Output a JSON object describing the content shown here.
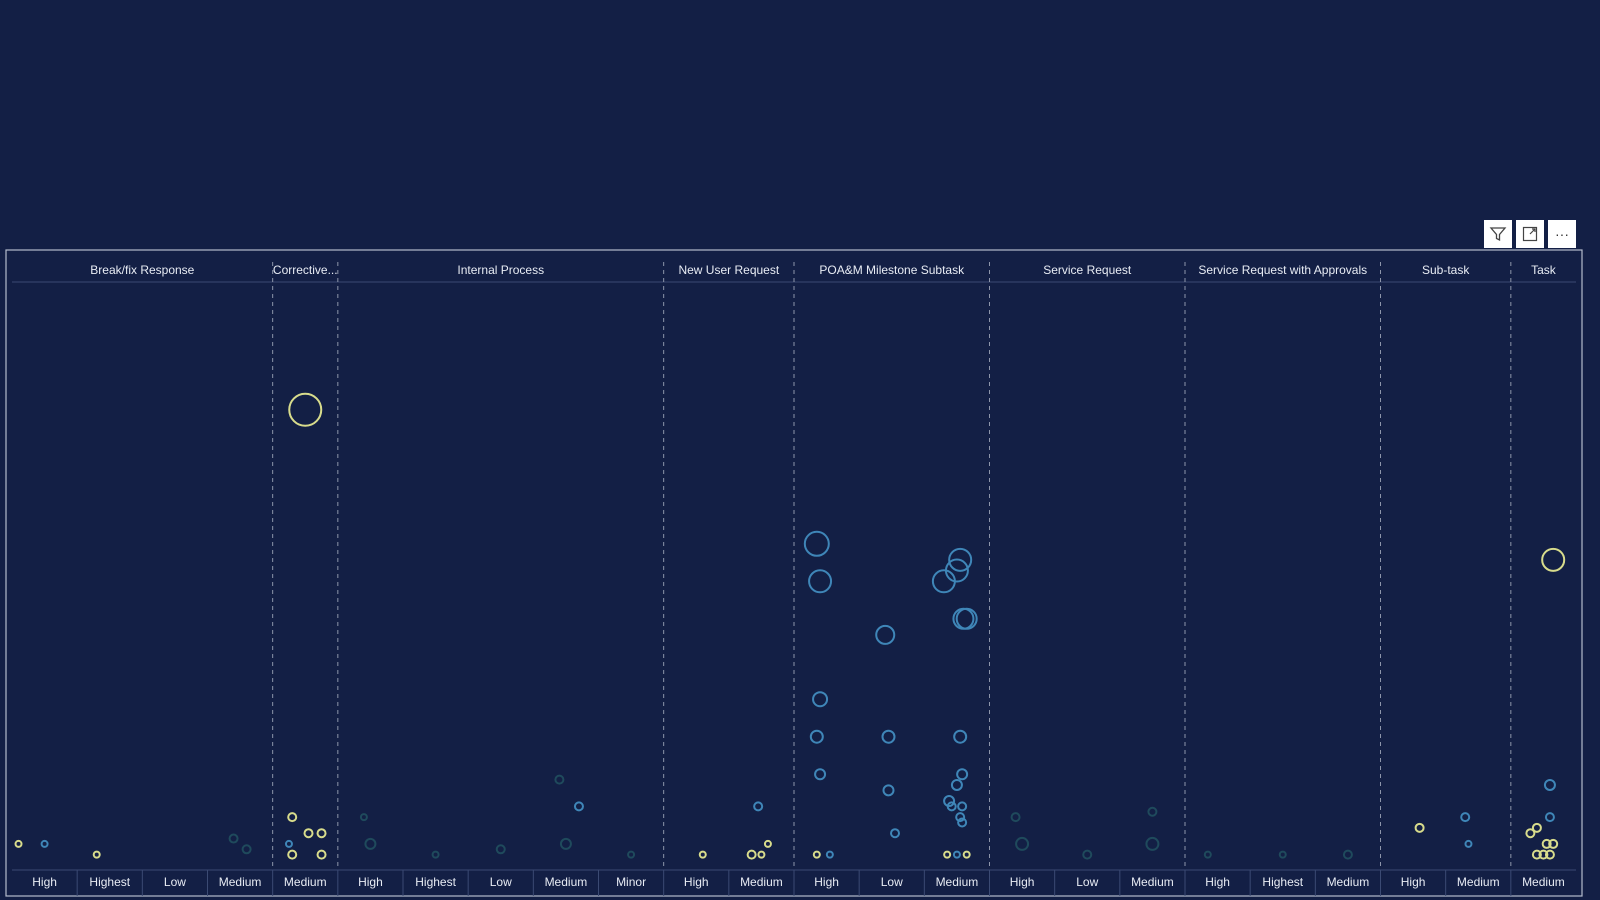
{
  "colors": {
    "background": "#131f45",
    "frame": "#b4bccd",
    "divider": "#8d95aa",
    "yellow_series": "#d8dc8c",
    "blue_series": "#3f86b8",
    "dark_teal_series": "#1f4a5c"
  },
  "toolbar": {
    "filter_icon": "filter-icon",
    "focus_icon": "focus-mode-icon",
    "more_icon": "more-options-icon",
    "more_label": "···"
  },
  "chart_data": {
    "type": "scatter",
    "groups": [
      {
        "name": "Break/fix Response",
        "categories": [
          "High",
          "Highest",
          "Low",
          "Medium"
        ]
      },
      {
        "name": "Corrective...",
        "categories": [
          "Medium"
        ]
      },
      {
        "name": "Internal Process",
        "categories": [
          "High",
          "Highest",
          "Low",
          "Medium",
          "Minor"
        ]
      },
      {
        "name": "New User Request",
        "categories": [
          "High",
          "Medium"
        ]
      },
      {
        "name": "POA&M Milestone Subtask",
        "categories": [
          "High",
          "Low",
          "Medium"
        ]
      },
      {
        "name": "Service Request",
        "categories": [
          "High",
          "Low",
          "Medium"
        ]
      },
      {
        "name": "Service Request with Approvals",
        "categories": [
          "High",
          "Highest",
          "Medium"
        ]
      },
      {
        "name": "Sub-task",
        "categories": [
          "High",
          "Medium"
        ]
      },
      {
        "name": "Task",
        "categories": [
          "Medium"
        ]
      }
    ],
    "y_axis": {
      "min": 0,
      "max": 100,
      "visible": false
    },
    "points": [
      {
        "cat": 0,
        "offset": -0.4,
        "y": 3,
        "size": 3,
        "color": "yellow"
      },
      {
        "cat": 0,
        "offset": 0.0,
        "y": 3,
        "size": 3,
        "color": "blue"
      },
      {
        "cat": 1,
        "offset": -0.2,
        "y": 1,
        "size": 3,
        "color": "yellow"
      },
      {
        "cat": 3,
        "offset": -0.1,
        "y": 4,
        "size": 4,
        "color": "teal"
      },
      {
        "cat": 3,
        "offset": 0.1,
        "y": 2,
        "size": 4,
        "color": "teal"
      },
      {
        "cat": 4,
        "offset": 0.0,
        "y": 84,
        "size": 16,
        "color": "yellow"
      },
      {
        "cat": 4,
        "offset": -0.2,
        "y": 8,
        "size": 4,
        "color": "yellow"
      },
      {
        "cat": 4,
        "offset": 0.05,
        "y": 5,
        "size": 4,
        "color": "yellow"
      },
      {
        "cat": 4,
        "offset": 0.25,
        "y": 5,
        "size": 4,
        "color": "yellow"
      },
      {
        "cat": 4,
        "offset": -0.25,
        "y": 3,
        "size": 3,
        "color": "blue"
      },
      {
        "cat": 4,
        "offset": -0.2,
        "y": 1,
        "size": 4,
        "color": "yellow"
      },
      {
        "cat": 4,
        "offset": 0.25,
        "y": 1,
        "size": 4,
        "color": "yellow"
      },
      {
        "cat": 5,
        "offset": 0.0,
        "y": 3,
        "size": 5,
        "color": "teal"
      },
      {
        "cat": 5,
        "offset": -0.1,
        "y": 8,
        "size": 3,
        "color": "teal"
      },
      {
        "cat": 6,
        "offset": 0.0,
        "y": 1,
        "size": 3,
        "color": "teal"
      },
      {
        "cat": 7,
        "offset": 0.0,
        "y": 2,
        "size": 4,
        "color": "teal"
      },
      {
        "cat": 8,
        "offset": 0.0,
        "y": 3,
        "size": 5,
        "color": "teal"
      },
      {
        "cat": 8,
        "offset": 0.2,
        "y": 10,
        "size": 4,
        "color": "blue"
      },
      {
        "cat": 8,
        "offset": -0.1,
        "y": 15,
        "size": 4,
        "color": "teal"
      },
      {
        "cat": 9,
        "offset": 0.0,
        "y": 1,
        "size": 3,
        "color": "teal"
      },
      {
        "cat": 10,
        "offset": 0.1,
        "y": 1,
        "size": 3,
        "color": "yellow"
      },
      {
        "cat": 11,
        "offset": -0.15,
        "y": 1,
        "size": 4,
        "color": "yellow"
      },
      {
        "cat": 11,
        "offset": 0.0,
        "y": 1,
        "size": 3,
        "color": "yellow"
      },
      {
        "cat": 11,
        "offset": 0.1,
        "y": 3,
        "size": 3,
        "color": "yellow"
      },
      {
        "cat": 11,
        "offset": -0.05,
        "y": 10,
        "size": 4,
        "color": "blue"
      },
      {
        "cat": 12,
        "offset": -0.15,
        "y": 59,
        "size": 12,
        "color": "blue"
      },
      {
        "cat": 12,
        "offset": -0.1,
        "y": 52,
        "size": 11,
        "color": "blue"
      },
      {
        "cat": 12,
        "offset": -0.1,
        "y": 30,
        "size": 7,
        "color": "blue"
      },
      {
        "cat": 12,
        "offset": -0.15,
        "y": 23,
        "size": 6,
        "color": "blue"
      },
      {
        "cat": 12,
        "offset": -0.1,
        "y": 16,
        "size": 5,
        "color": "blue"
      },
      {
        "cat": 12,
        "offset": -0.15,
        "y": 1,
        "size": 3,
        "color": "yellow"
      },
      {
        "cat": 12,
        "offset": 0.05,
        "y": 1,
        "size": 3,
        "color": "blue"
      },
      {
        "cat": 13,
        "offset": -0.1,
        "y": 42,
        "size": 9,
        "color": "blue"
      },
      {
        "cat": 13,
        "offset": -0.05,
        "y": 23,
        "size": 6,
        "color": "blue"
      },
      {
        "cat": 13,
        "offset": -0.05,
        "y": 13,
        "size": 5,
        "color": "blue"
      },
      {
        "cat": 13,
        "offset": 0.05,
        "y": 5,
        "size": 4,
        "color": "blue"
      },
      {
        "cat": 14,
        "offset": -0.2,
        "y": 52,
        "size": 11,
        "color": "blue"
      },
      {
        "cat": 14,
        "offset": 0.0,
        "y": 54,
        "size": 11,
        "color": "blue"
      },
      {
        "cat": 14,
        "offset": 0.05,
        "y": 56,
        "size": 11,
        "color": "blue"
      },
      {
        "cat": 14,
        "offset": 0.1,
        "y": 45,
        "size": 10,
        "color": "blue"
      },
      {
        "cat": 14,
        "offset": 0.15,
        "y": 45,
        "size": 10,
        "color": "blue"
      },
      {
        "cat": 14,
        "offset": 0.05,
        "y": 23,
        "size": 6,
        "color": "blue"
      },
      {
        "cat": 14,
        "offset": 0.08,
        "y": 16,
        "size": 5,
        "color": "blue"
      },
      {
        "cat": 14,
        "offset": 0.0,
        "y": 14,
        "size": 5,
        "color": "blue"
      },
      {
        "cat": 14,
        "offset": -0.12,
        "y": 11,
        "size": 5,
        "color": "blue"
      },
      {
        "cat": 14,
        "offset": -0.08,
        "y": 10,
        "size": 4,
        "color": "blue"
      },
      {
        "cat": 14,
        "offset": 0.08,
        "y": 10,
        "size": 4,
        "color": "blue"
      },
      {
        "cat": 14,
        "offset": 0.05,
        "y": 8,
        "size": 4,
        "color": "blue"
      },
      {
        "cat": 14,
        "offset": 0.08,
        "y": 7,
        "size": 4,
        "color": "blue"
      },
      {
        "cat": 14,
        "offset": -0.15,
        "y": 1,
        "size": 3,
        "color": "yellow"
      },
      {
        "cat": 14,
        "offset": 0.0,
        "y": 1,
        "size": 3,
        "color": "blue"
      },
      {
        "cat": 14,
        "offset": 0.15,
        "y": 1,
        "size": 3,
        "color": "yellow"
      },
      {
        "cat": 15,
        "offset": 0.0,
        "y": 3,
        "size": 6,
        "color": "teal"
      },
      {
        "cat": 15,
        "offset": -0.1,
        "y": 8,
        "size": 4,
        "color": "teal"
      },
      {
        "cat": 16,
        "offset": 0.0,
        "y": 1,
        "size": 4,
        "color": "teal"
      },
      {
        "cat": 17,
        "offset": 0.0,
        "y": 3,
        "size": 6,
        "color": "teal"
      },
      {
        "cat": 17,
        "offset": 0.0,
        "y": 9,
        "size": 4,
        "color": "teal"
      },
      {
        "cat": 18,
        "offset": -0.15,
        "y": 1,
        "size": 3,
        "color": "teal"
      },
      {
        "cat": 19,
        "offset": 0.0,
        "y": 1,
        "size": 3,
        "color": "teal"
      },
      {
        "cat": 20,
        "offset": 0.0,
        "y": 1,
        "size": 4,
        "color": "teal"
      },
      {
        "cat": 21,
        "offset": 0.1,
        "y": 6,
        "size": 4,
        "color": "yellow"
      },
      {
        "cat": 22,
        "offset": -0.2,
        "y": 8,
        "size": 4,
        "color": "blue"
      },
      {
        "cat": 22,
        "offset": -0.15,
        "y": 3,
        "size": 3,
        "color": "blue"
      },
      {
        "cat": 23,
        "offset": 0.15,
        "y": 56,
        "size": 11,
        "color": "yellow"
      },
      {
        "cat": 23,
        "offset": 0.1,
        "y": 14,
        "size": 5,
        "color": "blue"
      },
      {
        "cat": 23,
        "offset": 0.1,
        "y": 8,
        "size": 4,
        "color": "blue"
      },
      {
        "cat": 23,
        "offset": -0.1,
        "y": 6,
        "size": 4,
        "color": "yellow"
      },
      {
        "cat": 23,
        "offset": -0.2,
        "y": 5,
        "size": 4,
        "color": "yellow"
      },
      {
        "cat": 23,
        "offset": 0.05,
        "y": 3,
        "size": 4,
        "color": "yellow"
      },
      {
        "cat": 23,
        "offset": 0.15,
        "y": 3,
        "size": 4,
        "color": "yellow"
      },
      {
        "cat": 23,
        "offset": -0.1,
        "y": 1,
        "size": 4,
        "color": "yellow"
      },
      {
        "cat": 23,
        "offset": 0.0,
        "y": 1,
        "size": 4,
        "color": "yellow"
      },
      {
        "cat": 23,
        "offset": 0.1,
        "y": 1,
        "size": 4,
        "color": "yellow"
      }
    ]
  }
}
